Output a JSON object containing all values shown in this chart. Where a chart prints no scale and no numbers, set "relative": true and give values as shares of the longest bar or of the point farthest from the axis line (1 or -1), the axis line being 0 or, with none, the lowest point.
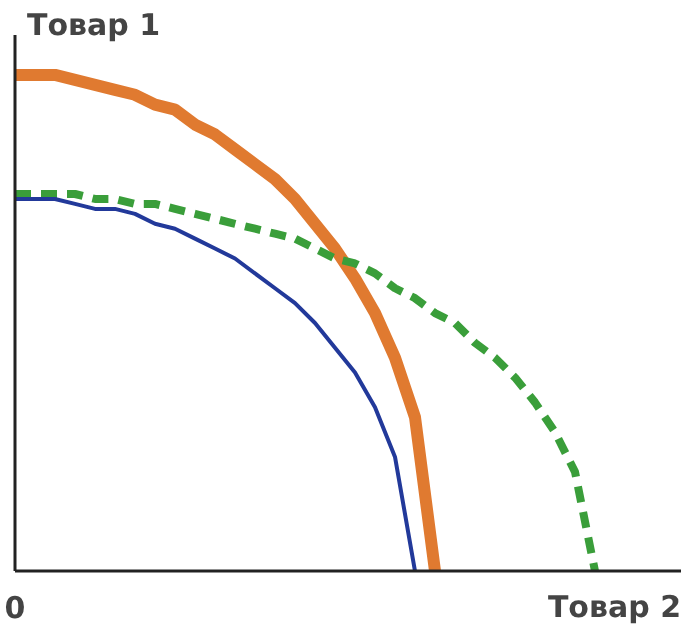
{
  "chart_data": {
    "type": "line",
    "relative": true,
    "ylabel": "Товар 1",
    "xlabel": "Товар 2",
    "annotations": [
      "0"
    ],
    "marker": "none",
    "categories": [
      null,
      null,
      null,
      null,
      null,
      null,
      null,
      null,
      null,
      null,
      null,
      null,
      null,
      null,
      null,
      null,
      null,
      null,
      null,
      null,
      null,
      null,
      null,
      null,
      null,
      null,
      null,
      null,
      null,
      null,
      null,
      null,
      null
    ],
    "series": [
      {
        "color": "#e07a30",
        "line_style": "solid",
        "values": [
          1.0,
          1.0,
          1.0,
          0.99,
          0.98,
          0.97,
          0.96,
          0.94,
          0.93,
          0.9,
          0.88,
          0.85,
          0.82,
          0.79,
          0.75,
          0.7,
          0.65,
          0.59,
          0.52,
          0.43,
          0.31,
          0,
          null,
          null,
          null,
          null,
          null,
          null,
          null,
          null,
          null,
          null,
          null
        ]
      },
      {
        "color": "#3a9e3a",
        "line_style": "dashed",
        "values": [
          0.76,
          0.76,
          0.76,
          0.76,
          0.75,
          0.75,
          0.74,
          0.74,
          0.73,
          0.72,
          0.71,
          0.7,
          0.69,
          0.68,
          0.67,
          0.65,
          0.63,
          0.62,
          0.6,
          0.57,
          0.55,
          0.52,
          0.5,
          0.46,
          0.43,
          0.39,
          0.34,
          0.28,
          0.2,
          0,
          null,
          null,
          null
        ]
      },
      {
        "color": "#22399a",
        "line_style": "solid",
        "values": [
          0.75,
          0.75,
          0.75,
          0.74,
          0.73,
          0.73,
          0.72,
          0.7,
          0.69,
          0.67,
          0.65,
          0.63,
          0.6,
          0.57,
          0.54,
          0.5,
          0.45,
          0.4,
          0.33,
          0.23,
          0,
          null,
          null,
          null,
          null,
          null,
          null,
          null,
          null,
          null,
          null,
          null,
          null
        ]
      }
    ]
  }
}
